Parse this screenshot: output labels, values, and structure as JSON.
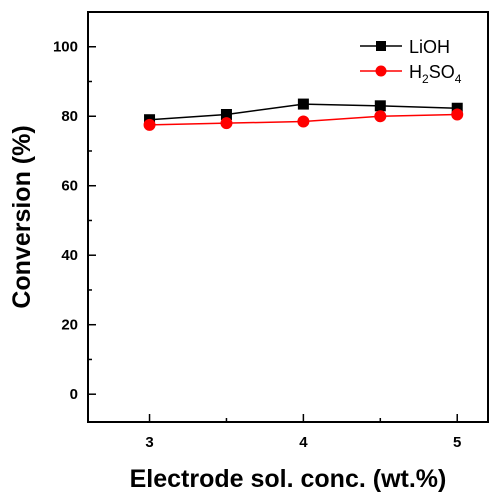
{
  "chart_data": {
    "type": "line",
    "xlabel": "Electrode sol. conc. (wt.%)",
    "ylabel": "Conversion (%)",
    "xlim": [
      2.6,
      5.2
    ],
    "ylim": [
      -8,
      110
    ],
    "x_ticks": [
      "3",
      "4",
      "5"
    ],
    "y_ticks": [
      "0",
      "20",
      "40",
      "60",
      "80",
      "100"
    ],
    "x_tick_values": [
      3,
      4,
      5
    ],
    "y_tick_values": [
      0,
      20,
      40,
      60,
      80,
      100
    ],
    "grid": false,
    "legend_position": "top-right",
    "x": [
      3,
      3.5,
      4,
      4.5,
      5
    ],
    "series": [
      {
        "name": "LiOH",
        "legend_parts": [
          {
            "text": "LiOH",
            "sub": false
          }
        ],
        "marker": "square",
        "color": "#000000",
        "values": [
          79,
          80.5,
          83.5,
          83,
          82.3
        ]
      },
      {
        "name": "H2SO4",
        "legend_parts": [
          {
            "text": "H",
            "sub": false
          },
          {
            "text": "2",
            "sub": true
          },
          {
            "text": "SO",
            "sub": false
          },
          {
            "text": "4",
            "sub": true
          }
        ],
        "marker": "circle",
        "color": "#ff0000",
        "values": [
          77.5,
          78,
          78.5,
          80,
          80.5
        ]
      }
    ]
  }
}
